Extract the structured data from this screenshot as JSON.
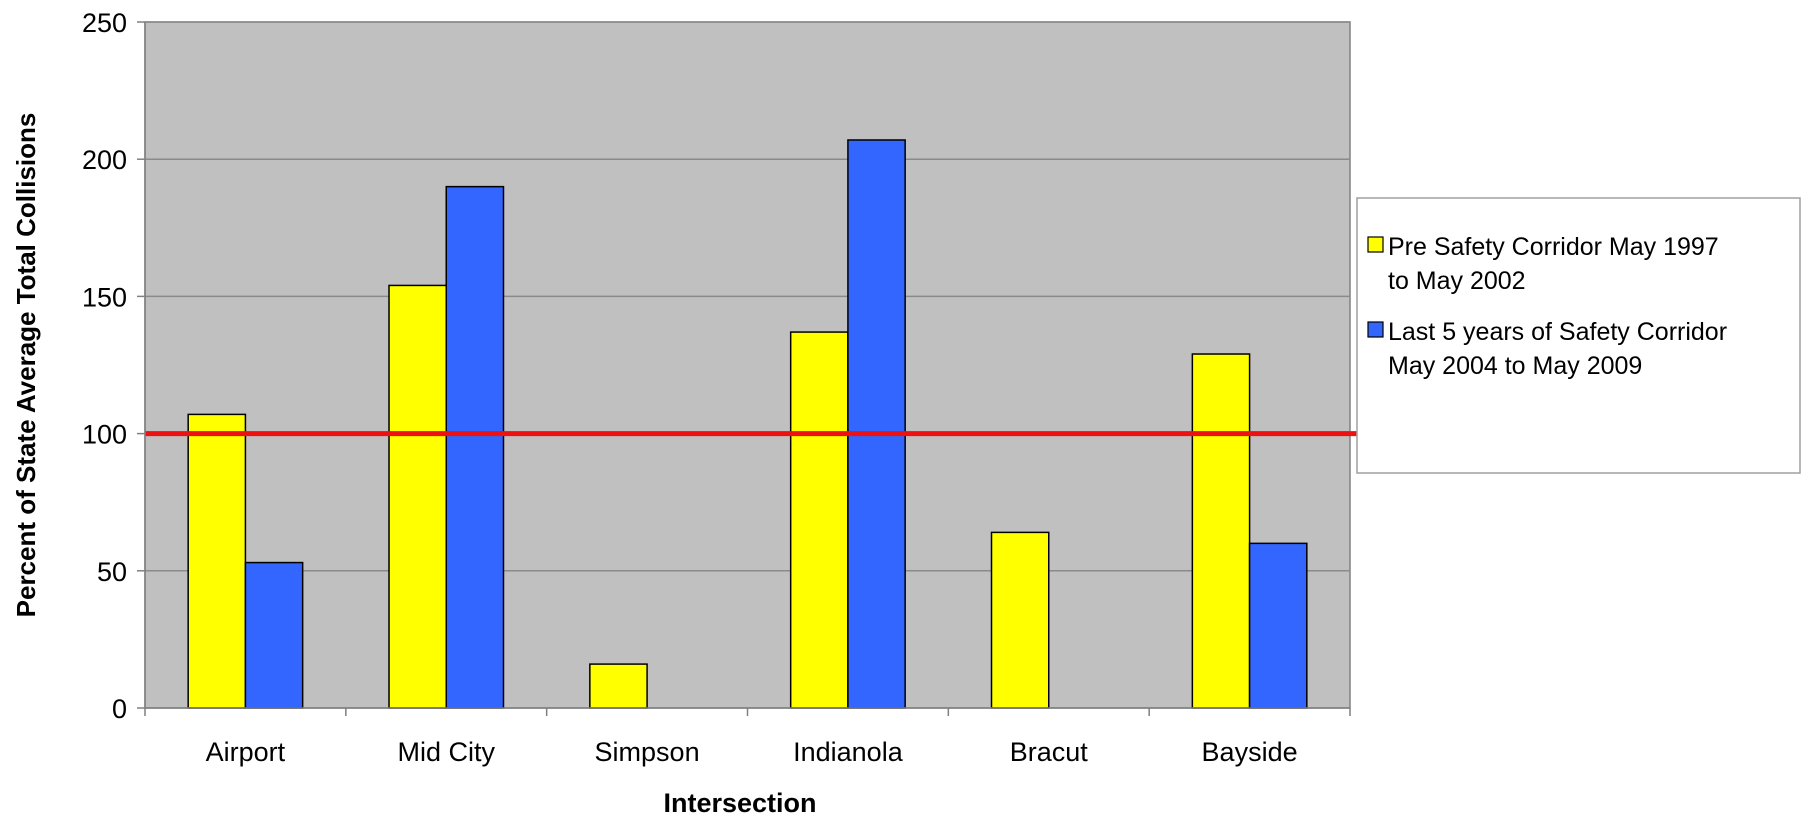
{
  "chart_data": {
    "type": "bar",
    "title": "",
    "xlabel": "Intersection",
    "ylabel": "Percent of State Average Total Collisions",
    "categories": [
      "Airport",
      "Mid City",
      "Simpson",
      "Indianola",
      "Bracut",
      "Bayside"
    ],
    "series": [
      {
        "name": "Pre Safety Corridor May 1997 to May 2002",
        "legend_lines": [
          "Pre Safety Corridor May 1997",
          "to May 2002"
        ],
        "color": "#ffff00",
        "values": [
          107,
          154,
          16,
          137,
          64,
          129
        ]
      },
      {
        "name": "Last 5 years of Safety Corridor May 2004 to May 2009",
        "legend_lines": [
          "Last 5 years of Safety Corridor",
          "May 2004 to May 2009"
        ],
        "color": "#3366ff",
        "values": [
          53,
          190,
          null,
          207,
          null,
          60
        ]
      }
    ],
    "ylim": [
      0,
      250
    ],
    "yticks": [
      0,
      50,
      100,
      150,
      200,
      250
    ],
    "reference_line": {
      "value": 100,
      "color": "#ee1111"
    },
    "grid": true,
    "legend_position": "right",
    "plot_background": "#c0c0c0"
  }
}
